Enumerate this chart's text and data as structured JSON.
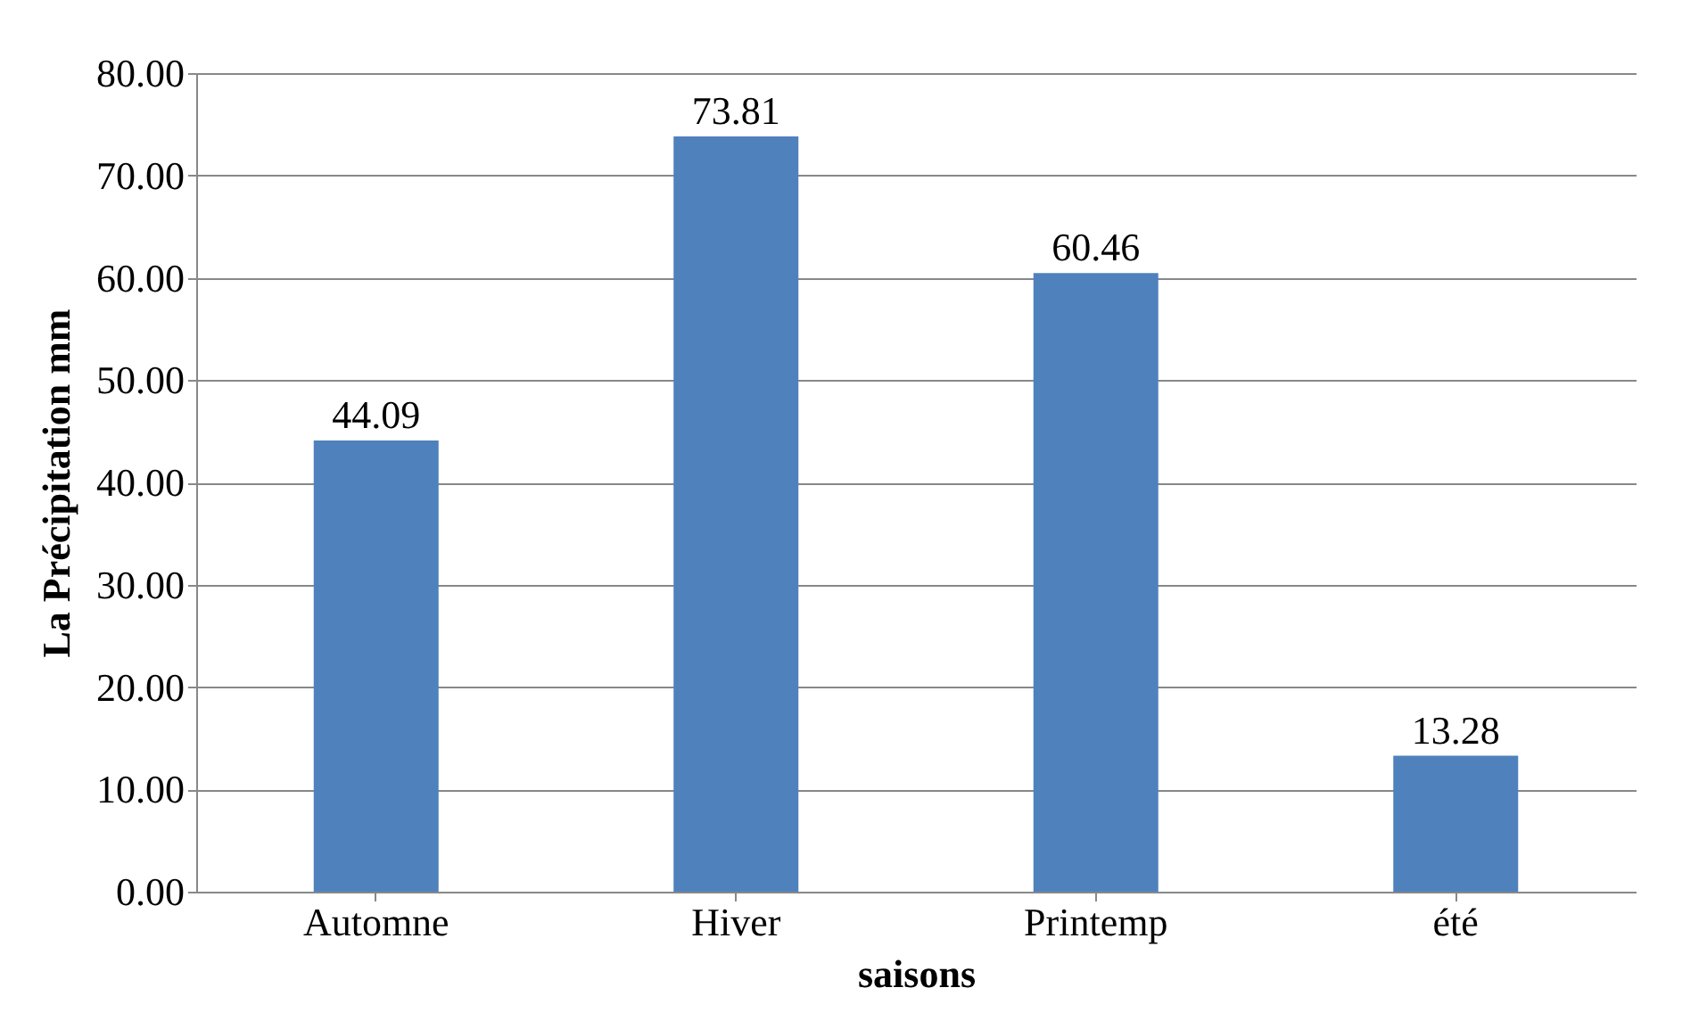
{
  "chart_data": {
    "type": "bar",
    "xlabel": "saisons",
    "ylabel": "La Précipitation mm",
    "categories": [
      "Automne",
      "Hiver",
      "Printemp",
      "été"
    ],
    "values": [
      44.09,
      73.81,
      60.46,
      13.28
    ],
    "color": "#4f81bd",
    "ylim": [
      0,
      80
    ],
    "yticks": [
      {
        "value": 0,
        "label": "0.00"
      },
      {
        "value": 10,
        "label": "10.00"
      },
      {
        "value": 20,
        "label": "20.00"
      },
      {
        "value": 30,
        "label": "30.00"
      },
      {
        "value": 40,
        "label": "40.00"
      },
      {
        "value": 50,
        "label": "50.00"
      },
      {
        "value": 60,
        "label": "60.00"
      },
      {
        "value": 70,
        "label": "70.00"
      },
      {
        "value": 80,
        "label": "80.00"
      }
    ],
    "grid": "y",
    "data_labels": true
  }
}
